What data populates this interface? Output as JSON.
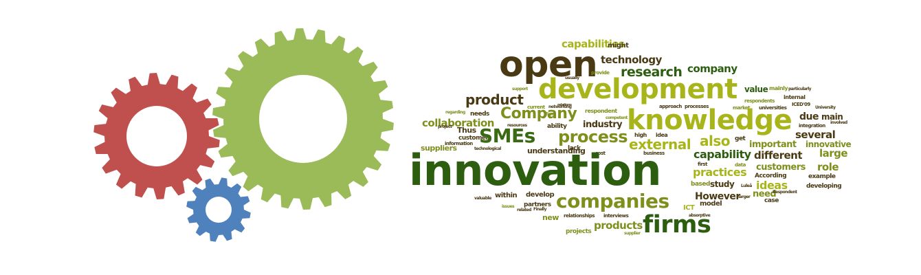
{
  "gears": [
    {
      "name": "red-gear-icon",
      "color": "#c0504d"
    },
    {
      "name": "green-gear-icon",
      "color": "#9bbb59"
    },
    {
      "name": "blue-gear-icon",
      "color": "#4f81bd"
    }
  ],
  "palette": {
    "dark": "#4a3a14",
    "olive": "#7f8f1c",
    "green": "#3a6b12",
    "lime": "#a8b51a",
    "darkgreen": "#2d5e10"
  },
  "words": [
    "capabilities",
    "might",
    "open",
    "technology",
    "research",
    "company",
    "provide",
    "usually",
    "development",
    "value",
    "mainly",
    "support",
    "product",
    "internal",
    "particularly",
    "relations",
    "respondent",
    "approach",
    "processes",
    "market",
    "respondents",
    "ICED'09",
    "current",
    "networking",
    "competent",
    "universities",
    "University",
    "knowledge",
    "Company",
    "regarding",
    "needs",
    "firm",
    "due",
    "main",
    "collaboration",
    "industry",
    "involved",
    "project",
    "Thus",
    "resources",
    "ability",
    "integration",
    "customer",
    "idea",
    "SMEs",
    "process",
    "high",
    "several",
    "information",
    "get",
    "important",
    "innovative",
    "suppliers",
    "technological",
    "lack",
    "external",
    "also",
    "understanding",
    "cost",
    "business",
    "capability",
    "different",
    "large",
    "innovation",
    "first",
    "customers",
    "role",
    "practices",
    "data",
    "According",
    "example",
    "based",
    "study",
    "Luleå",
    "ideas",
    "developing",
    "within",
    "develop",
    "valuable",
    "companies",
    "However",
    "larger",
    "need",
    "issues",
    "partners",
    "Finally",
    "related",
    "new",
    "ICT",
    "case",
    "interviews",
    "absorptive",
    "model",
    "Respondent",
    "relationships",
    "products",
    "firms",
    "projects",
    "supplier"
  ]
}
